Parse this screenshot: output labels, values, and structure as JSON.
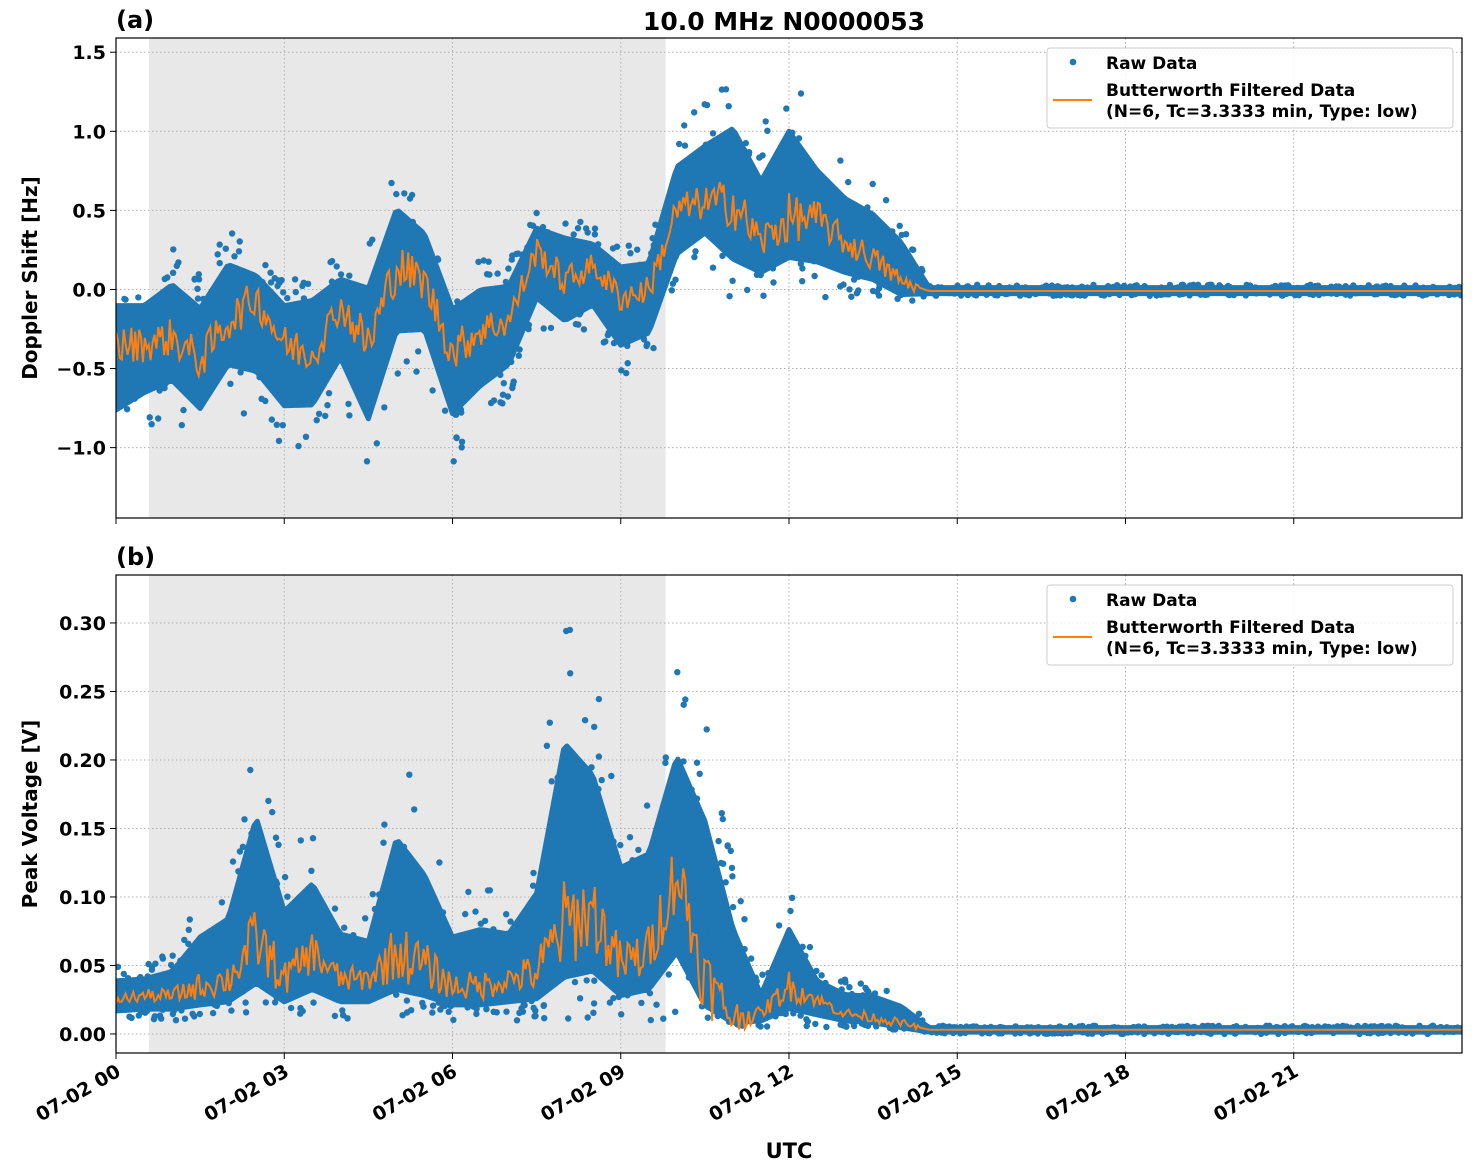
{
  "title": "10.0 MHz N0000053",
  "colors": {
    "raw": "#1f77b4",
    "filtered": "#ff7f0e",
    "shade": "#e8e8e8"
  },
  "chart_data": [
    {
      "type": "scatter",
      "panel_label": "(a)",
      "ylabel": "Doppler Shift [Hz]",
      "xlabel": "",
      "x_unit": "hours UTC on 07-02",
      "xlim": [
        0,
        24
      ],
      "ylim": [
        -1.445,
        1.59
      ],
      "grid": true,
      "legend_placement": "top-right",
      "shaded_interval_hours": [
        0.59,
        9.8
      ],
      "x_ticks": [
        0,
        3,
        6,
        9,
        12,
        15,
        18,
        21
      ],
      "x_tick_labels": [
        "07-02 00",
        "07-02 03",
        "07-02 06",
        "07-02 09",
        "07-02 12",
        "07-02 15",
        "07-02 18",
        "07-02 21"
      ],
      "y_ticks": [
        -1.0,
        -0.5,
        0.0,
        0.5,
        1.0,
        1.5
      ],
      "y_tick_labels": [
        "−1.0",
        "−0.5",
        "0.0",
        "0.5",
        "1.0",
        "1.5"
      ],
      "legend": [
        "Raw Data",
        "Butterworth Filtered Data",
        "(N=6, Tc=3.3333 min, Type: low)"
      ],
      "x": [
        0,
        0.5,
        1,
        1.5,
        2,
        2.5,
        3,
        3.5,
        4,
        4.5,
        5,
        5.5,
        6,
        6.5,
        7,
        7.5,
        8,
        8.5,
        9,
        9.5,
        10,
        10.5,
        11,
        11.5,
        12,
        12.5,
        13,
        13.5,
        14,
        14.5,
        24
      ],
      "series": [
        {
          "name": "Butterworth Filtered Data",
          "kind": "line",
          "values": [
            -0.35,
            -0.35,
            -0.3,
            -0.45,
            -0.2,
            -0.05,
            -0.35,
            -0.4,
            -0.1,
            -0.35,
            0.15,
            0.05,
            -0.4,
            -0.25,
            -0.2,
            0.25,
            0.05,
            0.15,
            -0.05,
            0.0,
            0.5,
            0.55,
            0.55,
            0.3,
            0.45,
            0.45,
            0.3,
            0.2,
            0.05,
            -0.01,
            -0.01
          ]
        },
        {
          "name": "Raw Data",
          "kind": "scatter-envelope",
          "min": [
            -1.1,
            -0.9,
            -0.8,
            -1.0,
            -0.7,
            -0.9,
            -1.05,
            -1.0,
            -0.7,
            -1.2,
            -0.6,
            -0.5,
            -1.1,
            -0.9,
            -0.7,
            -0.3,
            -0.4,
            -0.3,
            -0.6,
            -0.5,
            0.0,
            0.2,
            -0.1,
            -0.05,
            0.0,
            -0.05,
            -0.05,
            -0.05,
            -0.1,
            -0.04,
            -0.04
          ],
          "max": [
            0.1,
            0.1,
            0.3,
            0.15,
            0.45,
            0.2,
            0.1,
            0.2,
            0.2,
            0.3,
            0.8,
            0.6,
            0.1,
            0.2,
            0.2,
            0.5,
            0.55,
            0.4,
            0.3,
            0.3,
            1.0,
            1.2,
            1.4,
            1.0,
            1.45,
            1.0,
            0.8,
            0.7,
            0.5,
            0.03,
            0.03
          ]
        }
      ]
    },
    {
      "type": "scatter",
      "panel_label": "(b)",
      "ylabel": "Peak Voltage [V]",
      "xlabel": "UTC",
      "x_unit": "hours UTC on 07-02",
      "xlim": [
        0,
        24
      ],
      "ylim": [
        -0.0139,
        0.335
      ],
      "grid": true,
      "legend_placement": "top-right",
      "shaded_interval_hours": [
        0.59,
        9.8
      ],
      "x_ticks": [
        0,
        3,
        6,
        9,
        12,
        15,
        18,
        21
      ],
      "x_tick_labels": [
        "07-02 00",
        "07-02 03",
        "07-02 06",
        "07-02 09",
        "07-02 12",
        "07-02 15",
        "07-02 18",
        "07-02 21"
      ],
      "y_ticks": [
        0.0,
        0.05,
        0.1,
        0.15,
        0.2,
        0.25,
        0.3
      ],
      "y_tick_labels": [
        "0.00",
        "0.05",
        "0.10",
        "0.15",
        "0.20",
        "0.25",
        "0.30"
      ],
      "legend": [
        "Raw Data",
        "Butterworth Filtered Data",
        "(N=6, Tc=3.3333 min, Type: low)"
      ],
      "x": [
        0,
        0.5,
        1,
        1.5,
        2,
        2.5,
        3,
        3.5,
        4,
        4.5,
        5,
        5.5,
        6,
        6.5,
        7,
        7.5,
        8,
        8.5,
        9,
        9.5,
        10,
        10.5,
        11,
        11.5,
        12,
        12.5,
        13,
        13.5,
        14,
        14.5,
        24
      ],
      "series": [
        {
          "name": "Butterworth Filtered Data",
          "kind": "line",
          "values": [
            0.025,
            0.028,
            0.028,
            0.035,
            0.04,
            0.07,
            0.04,
            0.06,
            0.04,
            0.04,
            0.06,
            0.05,
            0.035,
            0.035,
            0.04,
            0.045,
            0.08,
            0.09,
            0.05,
            0.06,
            0.12,
            0.04,
            0.012,
            0.015,
            0.035,
            0.025,
            0.015,
            0.012,
            0.008,
            0.003,
            0.003
          ]
        },
        {
          "name": "Raw Data",
          "kind": "scatter-envelope",
          "min": [
            0.01,
            0.01,
            0.01,
            0.01,
            0.01,
            0.01,
            0.01,
            0.01,
            0.01,
            0.01,
            0.01,
            0.01,
            0.01,
            0.01,
            0.01,
            0.01,
            0.01,
            0.01,
            0.01,
            0.01,
            0.01,
            0.005,
            0.005,
            0.005,
            0.005,
            0.005,
            0.005,
            0.005,
            0.002,
            0.0,
            0.0
          ],
          "max": [
            0.05,
            0.05,
            0.06,
            0.1,
            0.12,
            0.23,
            0.13,
            0.15,
            0.1,
            0.09,
            0.21,
            0.17,
            0.1,
            0.11,
            0.1,
            0.15,
            0.32,
            0.27,
            0.18,
            0.19,
            0.27,
            0.25,
            0.13,
            0.04,
            0.11,
            0.05,
            0.04,
            0.04,
            0.03,
            0.006,
            0.006
          ]
        }
      ]
    }
  ]
}
